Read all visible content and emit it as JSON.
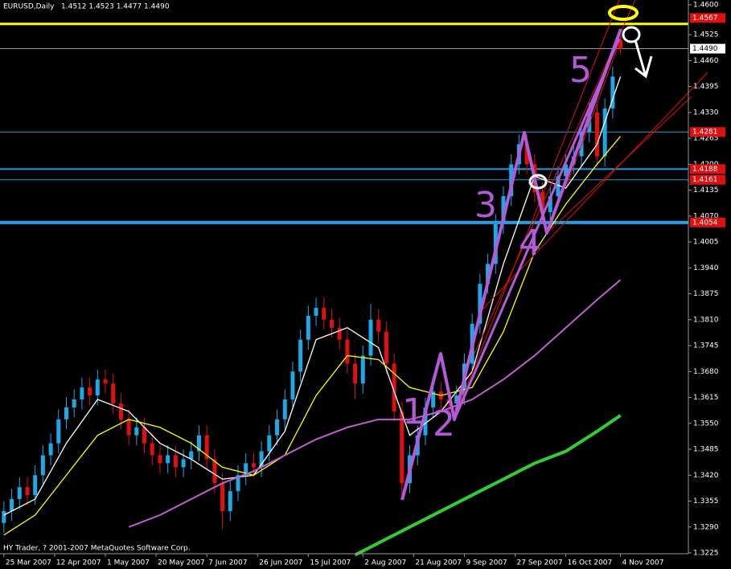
{
  "chart_data": {
    "type": "candlestick",
    "title": "EURUSD,Daily",
    "ohlc_text": "1.4512 1.4523 1.4477 1.4490",
    "footer": "HY Trader, ? 2001-2007 MetaQuotes Software Corp.",
    "up_color": "#1ca9e6",
    "down_color": "#e01010",
    "open": [
      1.33,
      1.333,
      1.336,
      1.339,
      1.337,
      1.342,
      1.347,
      1.35,
      1.356,
      1.359,
      1.361,
      1.364,
      1.362,
      1.366,
      1.365,
      1.36,
      1.356,
      1.352,
      1.354,
      1.35,
      1.347,
      1.345,
      1.347,
      1.344,
      1.346,
      1.348,
      1.352,
      1.346,
      1.34,
      1.333,
      1.338,
      1.342,
      1.345,
      1.344,
      1.348,
      1.352,
      1.356,
      1.361,
      1.368,
      1.376,
      1.382,
      1.384,
      1.381,
      1.379,
      1.376,
      1.37,
      1.365,
      1.372,
      1.381,
      1.378,
      1.37,
      1.358,
      1.34,
      1.347,
      1.352,
      1.359,
      1.363,
      1.361,
      1.36,
      1.362,
      1.37,
      1.38,
      1.39,
      1.395,
      1.405,
      1.412,
      1.42,
      1.425,
      1.42,
      1.413,
      1.408,
      1.412,
      1.417,
      1.42,
      1.422,
      1.428,
      1.433,
      1.422,
      1.434,
      1.4512
    ],
    "high": [
      1.3355,
      1.3385,
      1.3415,
      1.3415,
      1.3445,
      1.3495,
      1.3525,
      1.3585,
      1.3615,
      1.3635,
      1.3665,
      1.3665,
      1.3685,
      1.3685,
      1.3675,
      1.3625,
      1.3585,
      1.3565,
      1.3565,
      1.3525,
      1.3495,
      1.3495,
      1.3495,
      1.3485,
      1.3505,
      1.3545,
      1.3545,
      1.3485,
      1.3425,
      1.3405,
      1.3445,
      1.3475,
      1.3475,
      1.3505,
      1.3545,
      1.3585,
      1.3635,
      1.3705,
      1.3785,
      1.3845,
      1.3865,
      1.3865,
      1.3835,
      1.3815,
      1.3785,
      1.3725,
      1.3745,
      1.385,
      1.3835,
      1.3805,
      1.3725,
      1.3605,
      1.3495,
      1.3545,
      1.3615,
      1.3655,
      1.3655,
      1.3635,
      1.3645,
      1.3725,
      1.3825,
      1.3925,
      1.3975,
      1.4075,
      1.4145,
      1.4225,
      1.4275,
      1.4275,
      1.4225,
      1.4155,
      1.4145,
      1.4195,
      1.4225,
      1.4245,
      1.4305,
      1.4355,
      1.4355,
      1.4365,
      1.4445,
      1.4523
    ],
    "low": [
      1.3275,
      1.3305,
      1.3335,
      1.3345,
      1.3345,
      1.3395,
      1.3445,
      1.3475,
      1.3535,
      1.3565,
      1.3585,
      1.3595,
      1.3595,
      1.3625,
      1.3575,
      1.3535,
      1.3495,
      1.3495,
      1.3475,
      1.3445,
      1.3425,
      1.3425,
      1.3415,
      1.3415,
      1.3435,
      1.3455,
      1.3435,
      1.3375,
      1.3285,
      1.3305,
      1.3355,
      1.3395,
      1.3415,
      1.3415,
      1.3455,
      1.3495,
      1.3535,
      1.3585,
      1.3655,
      1.3735,
      1.3795,
      1.3785,
      1.3765,
      1.3735,
      1.3675,
      1.361,
      1.3625,
      1.3695,
      1.3755,
      1.3675,
      1.3555,
      1.3365,
      1.3375,
      1.3445,
      1.3495,
      1.3565,
      1.3585,
      1.3575,
      1.3575,
      1.3595,
      1.3675,
      1.3775,
      1.3875,
      1.3925,
      1.4025,
      1.4095,
      1.4175,
      1.4175,
      1.4105,
      1.4055,
      1.4055,
      1.4095,
      1.4145,
      1.4175,
      1.4195,
      1.4255,
      1.4195,
      1.4195,
      1.4315,
      1.4477
    ],
    "close": [
      1.333,
      1.336,
      1.339,
      1.337,
      1.342,
      1.347,
      1.35,
      1.356,
      1.359,
      1.361,
      1.364,
      1.362,
      1.366,
      1.365,
      1.36,
      1.356,
      1.352,
      1.354,
      1.35,
      1.347,
      1.345,
      1.347,
      1.344,
      1.346,
      1.348,
      1.352,
      1.346,
      1.34,
      1.333,
      1.338,
      1.342,
      1.345,
      1.344,
      1.348,
      1.352,
      1.356,
      1.361,
      1.368,
      1.376,
      1.382,
      1.384,
      1.381,
      1.379,
      1.376,
      1.37,
      1.365,
      1.372,
      1.381,
      1.378,
      1.37,
      1.358,
      1.34,
      1.347,
      1.352,
      1.359,
      1.363,
      1.361,
      1.36,
      1.362,
      1.37,
      1.38,
      1.39,
      1.395,
      1.405,
      1.412,
      1.42,
      1.425,
      1.42,
      1.413,
      1.408,
      1.412,
      1.417,
      1.42,
      1.422,
      1.428,
      1.433,
      1.422,
      1.434,
      1.442,
      1.449
    ],
    "moving_averages": [
      {
        "color": "#ffffff",
        "x": [
          0,
          4,
          8,
          12,
          16,
          20,
          24,
          28,
          32,
          36,
          40,
          44,
          48,
          52,
          56,
          60,
          64,
          68,
          72,
          76,
          79
        ],
        "values": [
          1.332,
          1.336,
          1.35,
          1.361,
          1.358,
          1.35,
          1.346,
          1.341,
          1.342,
          1.353,
          1.376,
          1.379,
          1.374,
          1.352,
          1.358,
          1.368,
          1.395,
          1.417,
          1.414,
          1.425,
          1.442
        ]
      },
      {
        "color": "#ffff00",
        "x": [
          0,
          4,
          8,
          12,
          16,
          20,
          24,
          28,
          32,
          36,
          40,
          44,
          48,
          52,
          56,
          60,
          64,
          68,
          72,
          76,
          79
        ],
        "values": [
          1.327,
          1.332,
          1.342,
          1.352,
          1.356,
          1.354,
          1.35,
          1.344,
          1.342,
          1.347,
          1.362,
          1.372,
          1.371,
          1.364,
          1.362,
          1.364,
          1.378,
          1.398,
          1.41,
          1.42,
          1.427
        ]
      },
      {
        "color": "#c060d0",
        "x": [
          16,
          20,
          24,
          28,
          32,
          36,
          40,
          44,
          48,
          52,
          56,
          60,
          64,
          68,
          72,
          76,
          79
        ],
        "values": [
          1.329,
          1.332,
          1.336,
          1.34,
          1.343,
          1.347,
          1.351,
          1.354,
          1.356,
          1.356,
          1.358,
          1.361,
          1.366,
          1.372,
          1.379,
          1.386,
          1.391
        ]
      },
      {
        "color": "#33cc33",
        "x": [
          45,
          48,
          52,
          56,
          60,
          64,
          68,
          72,
          76,
          79
        ],
        "values": [
          1.322,
          1.325,
          1.329,
          1.333,
          1.337,
          1.341,
          1.345,
          1.348,
          1.353,
          1.357
        ]
      }
    ],
    "levels": [
      {
        "value": 1.4567,
        "label": "1.4567",
        "color": "none",
        "width": 1,
        "box": "#e01010"
      },
      {
        "value": 1.4552,
        "color": "#ffff00",
        "width": 3
      },
      {
        "value": 1.449,
        "label": "1.4490",
        "color": "#8aa0a8",
        "width": 1,
        "box": "#ffffff"
      },
      {
        "value": 1.4281,
        "label": "1.4281",
        "color": "#2aa0d0",
        "width": 1,
        "box": "#e01010"
      },
      {
        "value": 1.4188,
        "label": "1.4188",
        "color": "#1ea0e6",
        "width": 2,
        "box": "#e01010"
      },
      {
        "value": 1.4161,
        "label": "1.4161",
        "color": "#1ea0e6",
        "width": 1,
        "box": "#e01010"
      },
      {
        "value": 1.4054,
        "label": "1.4054",
        "color": "#1ea0e6",
        "width": 4,
        "box": "#e01010"
      }
    ],
    "xlim": [
      -0.5,
      87.7
    ],
    "ylim": [
      1.3225,
      1.46
    ],
    "yticks": [
      {
        "value": 1.46,
        "label": "1.4600"
      },
      1.4525,
      {
        "value": 1.446,
        "label": "1.4460"
      },
      1.4395,
      {
        "value": 1.433,
        "label": "1.4330"
      },
      1.4265,
      {
        "value": 1.42,
        "label": "1.4200"
      },
      1.4135,
      {
        "value": 1.407,
        "label": "1.4070"
      },
      1.4005,
      {
        "value": 1.394,
        "label": "1.3940"
      },
      1.3875,
      {
        "value": 1.381,
        "label": "1.3810"
      },
      1.3745,
      {
        "value": 1.368,
        "label": "1.3680"
      },
      1.3615,
      {
        "value": 1.355,
        "label": "1.3550"
      },
      1.3485,
      {
        "value": 1.342,
        "label": "1.3420"
      },
      1.3355,
      {
        "value": 1.329,
        "label": "1.3290"
      },
      1.3225
    ],
    "xticks": [
      {
        "value": 0,
        "label": "25 Mar 2007"
      },
      {
        "value": 6.5,
        "label": "12 Apr 2007"
      },
      {
        "value": 13,
        "label": "1 May 2007"
      },
      {
        "value": 19.5,
        "label": "20 May 2007"
      },
      {
        "value": 26,
        "label": "7 Jun 2007"
      },
      {
        "value": 32.5,
        "label": "26 Jun 2007"
      },
      {
        "value": 39,
        "label": "15 Jul 2007"
      },
      {
        "value": 46,
        "label": "2 Aug 2007"
      },
      {
        "value": 52.5,
        "label": "21 Aug 2007"
      },
      {
        "value": 59,
        "label": "9 Sep 2007"
      },
      {
        "value": 65.5,
        "label": "27 Sep 2007"
      },
      {
        "value": 72,
        "label": "16 Oct 2007"
      },
      {
        "value": 79,
        "label": "4 Nov 2007"
      }
    ],
    "annotations": [
      "1",
      "2",
      "3",
      "4",
      "5"
    ]
  }
}
